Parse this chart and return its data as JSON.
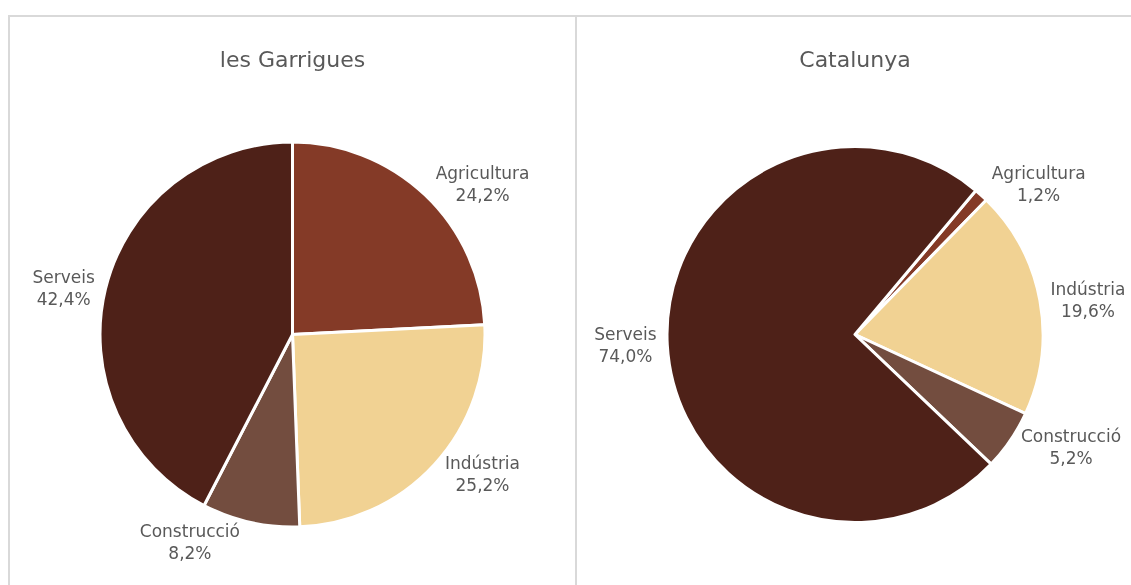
{
  "chart_data": [
    {
      "type": "pie",
      "title": "les Garrigues",
      "categories": [
        "Agricultura",
        "Indústria",
        "Construcció",
        "Serveis"
      ],
      "values": [
        24.2,
        25.2,
        8.2,
        42.4
      ],
      "value_labels": [
        "24,2%",
        "25,2%",
        "8,2%",
        "42,4%"
      ],
      "colors": [
        "#843a27",
        "#f1d293",
        "#734d3f",
        "#4e2118"
      ],
      "legend": false
    },
    {
      "type": "pie",
      "title": "Catalunya",
      "categories": [
        "Agricultura",
        "Indústria",
        "Construcció",
        "Serveis"
      ],
      "values": [
        1.2,
        19.6,
        5.2,
        74.0
      ],
      "value_labels": [
        "1,2%",
        "19,6%",
        "5,2%",
        "74,0%"
      ],
      "colors": [
        "#843a27",
        "#f1d293",
        "#734d3f",
        "#4e2118"
      ],
      "legend": false
    }
  ]
}
